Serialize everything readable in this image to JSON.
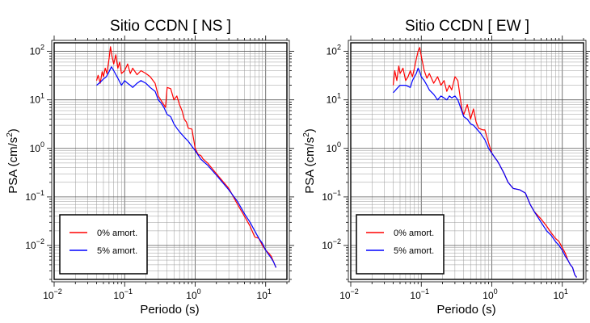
{
  "chart_data": [
    {
      "type": "line",
      "title": "Sitio CCDN [ NS ]",
      "xlabel": "Periodo (s)",
      "ylabel": {
        "main": "PSA (cm/s",
        "sup": "2",
        "close": ")"
      },
      "xscale": "log",
      "yscale": "log",
      "xlim": [
        0.01,
        20
      ],
      "ylim": [
        0.002,
        150
      ],
      "grid": true,
      "legend_position": "bottom-left",
      "x_ticks": [
        {
          "value": 0.01,
          "base": "10",
          "exp": "−2"
        },
        {
          "value": 0.1,
          "base": "10",
          "exp": "−1"
        },
        {
          "value": 1,
          "base": "10",
          "exp": "0"
        },
        {
          "value": 10,
          "base": "10",
          "exp": "1"
        }
      ],
      "y_ticks": [
        {
          "value": 0.01,
          "base": "10",
          "exp": "−2"
        },
        {
          "value": 0.1,
          "base": "10",
          "exp": "−1"
        },
        {
          "value": 1,
          "base": "10",
          "exp": "0"
        },
        {
          "value": 10,
          "base": "10",
          "exp": "1"
        },
        {
          "value": 100,
          "base": "10",
          "exp": "2"
        }
      ],
      "series": [
        {
          "name": "0% amort.",
          "color": "#ff0000",
          "points": [
            [
              0.04,
              25
            ],
            [
              0.042,
              32
            ],
            [
              0.045,
              22
            ],
            [
              0.048,
              38
            ],
            [
              0.05,
              30
            ],
            [
              0.053,
              45
            ],
            [
              0.056,
              35
            ],
            [
              0.06,
              70
            ],
            [
              0.063,
              125
            ],
            [
              0.066,
              80
            ],
            [
              0.07,
              55
            ],
            [
              0.075,
              85
            ],
            [
              0.08,
              45
            ],
            [
              0.085,
              60
            ],
            [
              0.09,
              35
            ],
            [
              0.1,
              40
            ],
            [
              0.11,
              55
            ],
            [
              0.12,
              35
            ],
            [
              0.13,
              45
            ],
            [
              0.15,
              33
            ],
            [
              0.17,
              40
            ],
            [
              0.2,
              35
            ],
            [
              0.23,
              30
            ],
            [
              0.27,
              22
            ],
            [
              0.3,
              12
            ],
            [
              0.34,
              9
            ],
            [
              0.38,
              7
            ],
            [
              0.4,
              18
            ],
            [
              0.45,
              17
            ],
            [
              0.5,
              10
            ],
            [
              0.55,
              12
            ],
            [
              0.6,
              8
            ],
            [
              0.65,
              6
            ],
            [
              0.7,
              4
            ],
            [
              0.75,
              3.5
            ],
            [
              0.8,
              2.6
            ],
            [
              0.9,
              2.5
            ],
            [
              1.0,
              1.0
            ],
            [
              1.1,
              0.75
            ],
            [
              1.2,
              0.72
            ],
            [
              1.3,
              0.6
            ],
            [
              1.5,
              0.5
            ],
            [
              2,
              0.3
            ],
            [
              3,
              0.15
            ],
            [
              4,
              0.07
            ],
            [
              5,
              0.04
            ],
            [
              6,
              0.025
            ],
            [
              7,
              0.015
            ],
            [
              8,
              0.014
            ],
            [
              9,
              0.01
            ],
            [
              10,
              0.008
            ],
            [
              11,
              0.007
            ],
            [
              12,
              0.006
            ],
            [
              13,
              0.0045
            ],
            [
              14,
              0.0035
            ]
          ]
        },
        {
          "name": "5% amort.",
          "color": "#0000ff",
          "points": [
            [
              0.04,
              20
            ],
            [
              0.045,
              23
            ],
            [
              0.05,
              27
            ],
            [
              0.055,
              30
            ],
            [
              0.06,
              38
            ],
            [
              0.065,
              48
            ],
            [
              0.07,
              40
            ],
            [
              0.08,
              28
            ],
            [
              0.09,
              20
            ],
            [
              0.1,
              25
            ],
            [
              0.11,
              22
            ],
            [
              0.12,
              20
            ],
            [
              0.13,
              18
            ],
            [
              0.15,
              22
            ],
            [
              0.17,
              25
            ],
            [
              0.2,
              22
            ],
            [
              0.23,
              18
            ],
            [
              0.27,
              15
            ],
            [
              0.3,
              10
            ],
            [
              0.33,
              8.5
            ],
            [
              0.36,
              7
            ],
            [
              0.4,
              5
            ],
            [
              0.45,
              4.5
            ],
            [
              0.5,
              3.2
            ],
            [
              0.55,
              2.6
            ],
            [
              0.6,
              2.2
            ],
            [
              0.7,
              1.7
            ],
            [
              0.8,
              1.4
            ],
            [
              0.9,
              1.1
            ],
            [
              1.0,
              0.9
            ],
            [
              1.2,
              0.6
            ],
            [
              1.5,
              0.45
            ],
            [
              2,
              0.28
            ],
            [
              3,
              0.14
            ],
            [
              4,
              0.08
            ],
            [
              5,
              0.045
            ],
            [
              6,
              0.03
            ],
            [
              7,
              0.02
            ],
            [
              8,
              0.014
            ],
            [
              9,
              0.011
            ],
            [
              10,
              0.008
            ],
            [
              11,
              0.0065
            ],
            [
              12,
              0.0055
            ],
            [
              13,
              0.0045
            ],
            [
              14,
              0.0035
            ]
          ]
        }
      ]
    },
    {
      "type": "line",
      "title": "Sitio CCDN [ EW ]",
      "xlabel": "Periodo (s)",
      "ylabel": {
        "main": "PSA (cm/s",
        "sup": "2",
        "close": ")"
      },
      "xscale": "log",
      "yscale": "log",
      "xlim": [
        0.01,
        20
      ],
      "ylim": [
        0.002,
        150
      ],
      "grid": true,
      "legend_position": "bottom-left",
      "x_ticks": [
        {
          "value": 0.01,
          "base": "10",
          "exp": "−2"
        },
        {
          "value": 0.1,
          "base": "10",
          "exp": "−1"
        },
        {
          "value": 1,
          "base": "10",
          "exp": "0"
        },
        {
          "value": 10,
          "base": "10",
          "exp": "1"
        }
      ],
      "y_ticks": [
        {
          "value": 0.01,
          "base": "10",
          "exp": "−2"
        },
        {
          "value": 0.1,
          "base": "10",
          "exp": "−1"
        },
        {
          "value": 1,
          "base": "10",
          "exp": "0"
        },
        {
          "value": 10,
          "base": "10",
          "exp": "1"
        },
        {
          "value": 100,
          "base": "10",
          "exp": "2"
        }
      ],
      "series": [
        {
          "name": "0% amort.",
          "color": "#ff0000",
          "points": [
            [
              0.04,
              20
            ],
            [
              0.042,
              40
            ],
            [
              0.045,
              25
            ],
            [
              0.048,
              50
            ],
            [
              0.05,
              35
            ],
            [
              0.055,
              45
            ],
            [
              0.06,
              25
            ],
            [
              0.065,
              30
            ],
            [
              0.07,
              40
            ],
            [
              0.075,
              30
            ],
            [
              0.08,
              45
            ],
            [
              0.085,
              70
            ],
            [
              0.09,
              100
            ],
            [
              0.095,
              120
            ],
            [
              0.1,
              80
            ],
            [
              0.11,
              40
            ],
            [
              0.12,
              28
            ],
            [
              0.13,
              35
            ],
            [
              0.15,
              22
            ],
            [
              0.17,
              30
            ],
            [
              0.19,
              20
            ],
            [
              0.21,
              25
            ],
            [
              0.23,
              15
            ],
            [
              0.25,
              20
            ],
            [
              0.27,
              16
            ],
            [
              0.3,
              30
            ],
            [
              0.33,
              25
            ],
            [
              0.36,
              10
            ],
            [
              0.38,
              6
            ],
            [
              0.4,
              5
            ],
            [
              0.45,
              8
            ],
            [
              0.5,
              4
            ],
            [
              0.55,
              6.5
            ],
            [
              0.6,
              3.5
            ],
            [
              0.65,
              2.6
            ],
            [
              0.7,
              2.5
            ],
            [
              0.75,
              2.4
            ],
            [
              0.8,
              2.4
            ],
            [
              0.9,
              1.3
            ],
            [
              1.0,
              0.8
            ],
            [
              1.1,
              0.65
            ],
            [
              1.2,
              0.55
            ],
            [
              1.3,
              0.45
            ],
            [
              1.5,
              0.3
            ],
            [
              1.7,
              0.2
            ],
            [
              2,
              0.15
            ],
            [
              2.5,
              0.14
            ],
            [
              3,
              0.12
            ],
            [
              3.5,
              0.07
            ],
            [
              4,
              0.05
            ],
            [
              5,
              0.035
            ],
            [
              6,
              0.025
            ],
            [
              7,
              0.018
            ],
            [
              8,
              0.014
            ],
            [
              9,
              0.012
            ],
            [
              10,
              0.009
            ],
            [
              11,
              0.007
            ],
            [
              12,
              0.005
            ],
            [
              13,
              0.004
            ],
            [
              14,
              0.0035
            ],
            [
              15,
              0.0025
            ],
            [
              16,
              0.0022
            ]
          ]
        },
        {
          "name": "5% amort.",
          "color": "#0000ff",
          "points": [
            [
              0.04,
              14
            ],
            [
              0.045,
              17
            ],
            [
              0.05,
              20
            ],
            [
              0.06,
              20
            ],
            [
              0.07,
              18
            ],
            [
              0.075,
              25
            ],
            [
              0.08,
              30
            ],
            [
              0.085,
              35
            ],
            [
              0.09,
              45
            ],
            [
              0.095,
              38
            ],
            [
              0.1,
              30
            ],
            [
              0.11,
              25
            ],
            [
              0.12,
              20
            ],
            [
              0.13,
              16
            ],
            [
              0.15,
              13
            ],
            [
              0.17,
              10
            ],
            [
              0.19,
              12
            ],
            [
              0.21,
              11
            ],
            [
              0.23,
              10
            ],
            [
              0.25,
              12
            ],
            [
              0.27,
              11
            ],
            [
              0.3,
              12
            ],
            [
              0.33,
              10
            ],
            [
              0.36,
              7
            ],
            [
              0.4,
              4.5
            ],
            [
              0.45,
              4
            ],
            [
              0.5,
              3.2
            ],
            [
              0.55,
              3
            ],
            [
              0.6,
              2.6
            ],
            [
              0.7,
              2
            ],
            [
              0.8,
              1.5
            ],
            [
              0.9,
              1.0
            ],
            [
              1.0,
              0.8
            ],
            [
              1.1,
              0.65
            ],
            [
              1.2,
              0.55
            ],
            [
              1.3,
              0.45
            ],
            [
              1.5,
              0.3
            ],
            [
              1.7,
              0.2
            ],
            [
              2,
              0.15
            ],
            [
              2.5,
              0.14
            ],
            [
              3,
              0.12
            ],
            [
              3.5,
              0.07
            ],
            [
              4,
              0.05
            ],
            [
              5,
              0.03
            ],
            [
              6,
              0.02
            ],
            [
              7,
              0.016
            ],
            [
              8,
              0.012
            ],
            [
              9,
              0.01
            ],
            [
              10,
              0.008
            ],
            [
              11,
              0.006
            ],
            [
              12,
              0.005
            ],
            [
              13,
              0.004
            ],
            [
              14,
              0.0035
            ],
            [
              15,
              0.0025
            ],
            [
              16,
              0.0022
            ]
          ]
        }
      ]
    }
  ]
}
